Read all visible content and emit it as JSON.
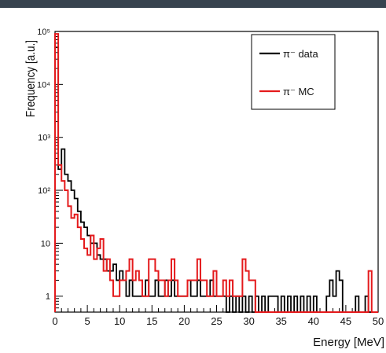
{
  "chart_data": {
    "type": "histogram",
    "title": "",
    "xlabel": "Energy [MeV]",
    "ylabel": "Frequency [a.u.]",
    "xlim": [
      0,
      50
    ],
    "ylim": [
      0.5,
      100000
    ],
    "yscale": "log",
    "grid": false,
    "bin_width": 0.5,
    "x_ticks": [
      0,
      5,
      10,
      15,
      20,
      25,
      30,
      35,
      40,
      45,
      50
    ],
    "x_tick_labels": [
      "0",
      "5",
      "10",
      "15",
      "20",
      "25",
      "30",
      "35",
      "40",
      "45",
      "50"
    ],
    "y_ticks": [
      1,
      10,
      100,
      1000,
      10000,
      100000
    ],
    "y_tick_labels": [
      "1",
      "10",
      "10²",
      "10³",
      "10⁴",
      "10⁵"
    ],
    "legend": {
      "position": "top-right"
    },
    "series": [
      {
        "name": "π⁻ data",
        "color": "#000000",
        "bins": [
          [
            0.0,
            50000
          ],
          [
            0.5,
            250
          ],
          [
            1.0,
            600
          ],
          [
            1.5,
            200
          ],
          [
            2.0,
            150
          ],
          [
            2.5,
            100
          ],
          [
            3.0,
            70
          ],
          [
            3.5,
            40
          ],
          [
            4.0,
            25
          ],
          [
            4.5,
            20
          ],
          [
            5.0,
            14
          ],
          [
            5.5,
            10
          ],
          [
            6.0,
            10
          ],
          [
            6.5,
            6
          ],
          [
            7.0,
            5
          ],
          [
            7.5,
            5
          ],
          [
            8.0,
            3
          ],
          [
            8.5,
            3
          ],
          [
            9.0,
            4
          ],
          [
            9.5,
            2
          ],
          [
            10.0,
            3
          ],
          [
            10.5,
            2
          ],
          [
            11.0,
            1
          ],
          [
            11.5,
            2
          ],
          [
            12.0,
            1
          ],
          [
            12.5,
            1
          ],
          [
            13.0,
            1
          ],
          [
            13.5,
            1
          ],
          [
            14.0,
            2
          ],
          [
            14.5,
            1
          ],
          [
            15.0,
            1
          ],
          [
            15.5,
            2
          ],
          [
            16.0,
            1
          ],
          [
            16.5,
            1
          ],
          [
            17.0,
            2
          ],
          [
            17.5,
            1
          ],
          [
            18.0,
            2
          ],
          [
            18.5,
            1
          ],
          [
            19.0,
            1
          ],
          [
            19.5,
            1
          ],
          [
            20.0,
            1
          ],
          [
            20.5,
            2
          ],
          [
            21.0,
            1
          ],
          [
            21.5,
            1
          ],
          [
            22.0,
            2
          ],
          [
            22.5,
            1
          ],
          [
            23.0,
            1
          ],
          [
            23.5,
            1
          ],
          [
            24.0,
            2
          ],
          [
            24.5,
            1
          ],
          [
            25.0,
            1
          ],
          [
            25.5,
            1
          ],
          [
            26.0,
            1
          ],
          [
            27.0,
            1
          ],
          [
            28.0,
            1
          ],
          [
            29.0,
            1
          ],
          [
            30.0,
            1
          ],
          [
            31.0,
            1
          ],
          [
            32.0,
            1
          ],
          [
            33.0,
            1
          ],
          [
            33.5,
            1
          ],
          [
            34.0,
            1
          ],
          [
            35.0,
            1
          ],
          [
            36.0,
            1
          ],
          [
            37.0,
            1
          ],
          [
            38.0,
            1
          ],
          [
            39.0,
            1
          ],
          [
            40.0,
            1
          ],
          [
            42.0,
            1
          ],
          [
            42.5,
            2
          ],
          [
            43.0,
            1
          ],
          [
            43.5,
            3
          ],
          [
            44.0,
            2
          ],
          [
            46.5,
            1
          ],
          [
            48.0,
            1
          ]
        ]
      },
      {
        "name": "π⁻ MC",
        "color": "#e41a1c",
        "bins": [
          [
            0.0,
            90000
          ],
          [
            0.5,
            300
          ],
          [
            1.0,
            150
          ],
          [
            1.5,
            100
          ],
          [
            2.0,
            50
          ],
          [
            2.5,
            30
          ],
          [
            3.0,
            35
          ],
          [
            3.5,
            20
          ],
          [
            4.0,
            12
          ],
          [
            4.5,
            8
          ],
          [
            5.0,
            6
          ],
          [
            5.5,
            14
          ],
          [
            6.0,
            5
          ],
          [
            6.5,
            8
          ],
          [
            7.0,
            12
          ],
          [
            7.5,
            3
          ],
          [
            8.0,
            5
          ],
          [
            8.5,
            2
          ],
          [
            9.0,
            1
          ],
          [
            9.5,
            1
          ],
          [
            10.0,
            2
          ],
          [
            10.5,
            2
          ],
          [
            11.0,
            3
          ],
          [
            11.5,
            5
          ],
          [
            12.0,
            2
          ],
          [
            12.5,
            3
          ],
          [
            13.0,
            2
          ],
          [
            13.5,
            1
          ],
          [
            14.0,
            1
          ],
          [
            14.5,
            5
          ],
          [
            15.0,
            5
          ],
          [
            15.5,
            3
          ],
          [
            16.0,
            2
          ],
          [
            16.5,
            2
          ],
          [
            17.0,
            1
          ],
          [
            17.5,
            2
          ],
          [
            18.0,
            5
          ],
          [
            18.5,
            2
          ],
          [
            19.0,
            1
          ],
          [
            19.5,
            1
          ],
          [
            20.0,
            1
          ],
          [
            20.5,
            2
          ],
          [
            21.0,
            2
          ],
          [
            21.5,
            2
          ],
          [
            22.0,
            5
          ],
          [
            22.5,
            2
          ],
          [
            23.0,
            2
          ],
          [
            23.5,
            1
          ],
          [
            24.0,
            1
          ],
          [
            24.5,
            3
          ],
          [
            25.0,
            1
          ],
          [
            25.5,
            1
          ],
          [
            26.0,
            2
          ],
          [
            26.5,
            1
          ],
          [
            27.0,
            2
          ],
          [
            27.5,
            1
          ],
          [
            28.0,
            1
          ],
          [
            28.5,
            1
          ],
          [
            29.0,
            5
          ],
          [
            29.5,
            3
          ],
          [
            30.0,
            2
          ],
          [
            30.5,
            2
          ],
          [
            48.5,
            3
          ]
        ]
      }
    ]
  }
}
